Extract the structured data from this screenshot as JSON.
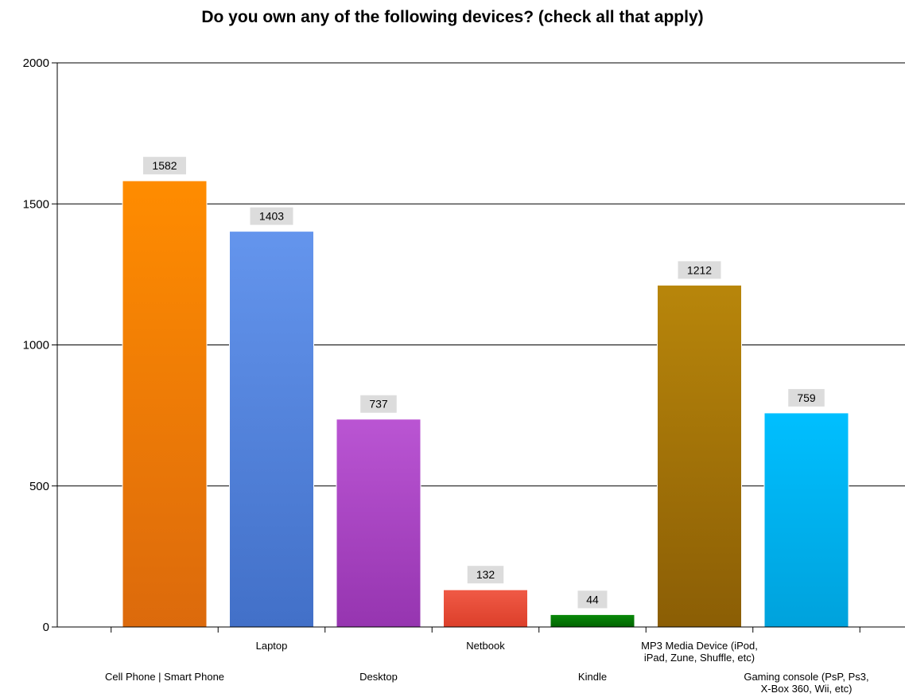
{
  "chart_data": {
    "type": "bar",
    "title": "Do you own any of the following devices? (check all that apply)",
    "xlabel": "",
    "ylabel": "",
    "categories": [
      "Cell Phone | Smart Phone",
      "Laptop",
      "Desktop",
      "Netbook",
      "Kindle",
      "MP3 Media Device (iPod, iPad, Zune, Shuffle, etc)",
      "Gaming console (PsP, Ps3, X-Box 360, Wii, etc)"
    ],
    "category_label_lines": [
      [
        "Cell Phone | Smart Phone"
      ],
      [
        "Laptop"
      ],
      [
        "Desktop"
      ],
      [
        "Netbook"
      ],
      [
        "Kindle"
      ],
      [
        "MP3 Media Device (iPod,",
        "iPad, Zune, Shuffle, etc)"
      ],
      [
        "Gaming console (PsP, Ps3,",
        "X-Box 360, Wii, etc)"
      ]
    ],
    "values": [
      1582,
      1403,
      737,
      132,
      44,
      1212,
      759
    ],
    "data_labels": [
      "1582",
      "1403",
      "737",
      "132",
      "44",
      "1212",
      "759"
    ],
    "bar_colors": [
      [
        "#FF8C00",
        "#DC6A0C"
      ],
      [
        "#6495ED",
        "#4270C8"
      ],
      [
        "#BA55D3",
        "#9635B0"
      ],
      [
        "#F05A46",
        "#DC3F2A"
      ],
      [
        "#0A8A0A",
        "#006400"
      ],
      [
        "#B8860B",
        "#8B5E05"
      ],
      [
        "#00BFFF",
        "#00A2DC"
      ]
    ],
    "ylim": [
      0,
      2000
    ],
    "yticks": [
      0,
      500,
      1000,
      1500,
      2000
    ],
    "ytick_labels": [
      "0",
      "500",
      "1000",
      "1500",
      "2000"
    ],
    "grid": true,
    "legend": "none",
    "data_label_background": "#DCDCDC"
  }
}
